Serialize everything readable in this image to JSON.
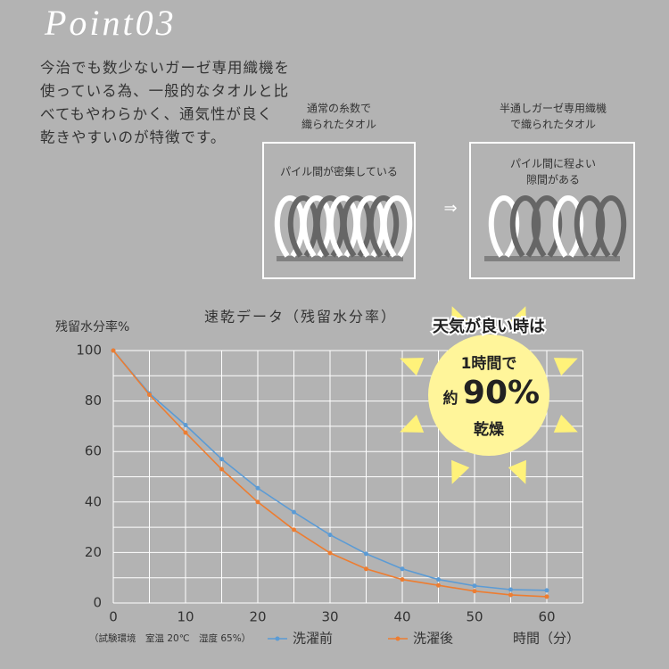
{
  "header": {
    "title": "Point03",
    "paragraph": [
      "今治でも数少ないガーゼ専用織機を",
      "使っている為、一般的なタオルと比",
      "べてもやわらかく、通気性が良く",
      "乾きやすいのが特徴です。"
    ]
  },
  "diagram": {
    "left": {
      "caption": [
        "通常の糸数で",
        "織られたタオル"
      ],
      "label": [
        "パイル間が密集している"
      ]
    },
    "arrow": "⇒",
    "right": {
      "caption": [
        "半通しガーゼ専用織機",
        "で織られたタオル"
      ],
      "label": [
        "パイル間に程よい",
        "隙間がある"
      ]
    }
  },
  "chart_data": {
    "type": "line",
    "title": "速乾データ（残留水分率）",
    "y_label": "残留水分率%",
    "x_label": "時間（分）",
    "note": "（試験環境　室温 20℃　湿度 65%）",
    "x": [
      0,
      5,
      10,
      15,
      20,
      25,
      30,
      35,
      40,
      45,
      50,
      55,
      60
    ],
    "series": [
      {
        "name": "洗濯前",
        "color": "#5b9bd5",
        "values": [
          100,
          83,
          70.5,
          57,
          45.5,
          36,
          27,
          19.5,
          13.5,
          9.3,
          6.8,
          5.3,
          5
        ]
      },
      {
        "name": "洗濯後",
        "color": "#ed7d31",
        "values": [
          100,
          82.5,
          67.5,
          53,
          40,
          29,
          19.8,
          13.5,
          9.3,
          7,
          4.7,
          3.2,
          2.5
        ]
      }
    ],
    "xlim": [
      0,
      65
    ],
    "ylim": [
      0,
      100
    ],
    "xticks": [
      0,
      10,
      20,
      30,
      40,
      50,
      60
    ],
    "yticks": [
      0,
      20,
      40,
      60,
      80,
      100
    ],
    "xgrid": [
      0,
      5,
      10,
      15,
      20,
      25,
      30,
      35,
      40,
      45,
      50,
      55,
      60,
      65
    ],
    "ygrid": [
      0,
      10,
      20,
      30,
      40,
      50,
      60,
      70,
      80,
      90,
      100
    ],
    "grid": true,
    "legend": "bottom",
    "callout": {
      "headline": "天気が良い時は",
      "line1": "1時間で",
      "prefix": "約",
      "value": "90%",
      "suffix": "乾燥"
    }
  }
}
